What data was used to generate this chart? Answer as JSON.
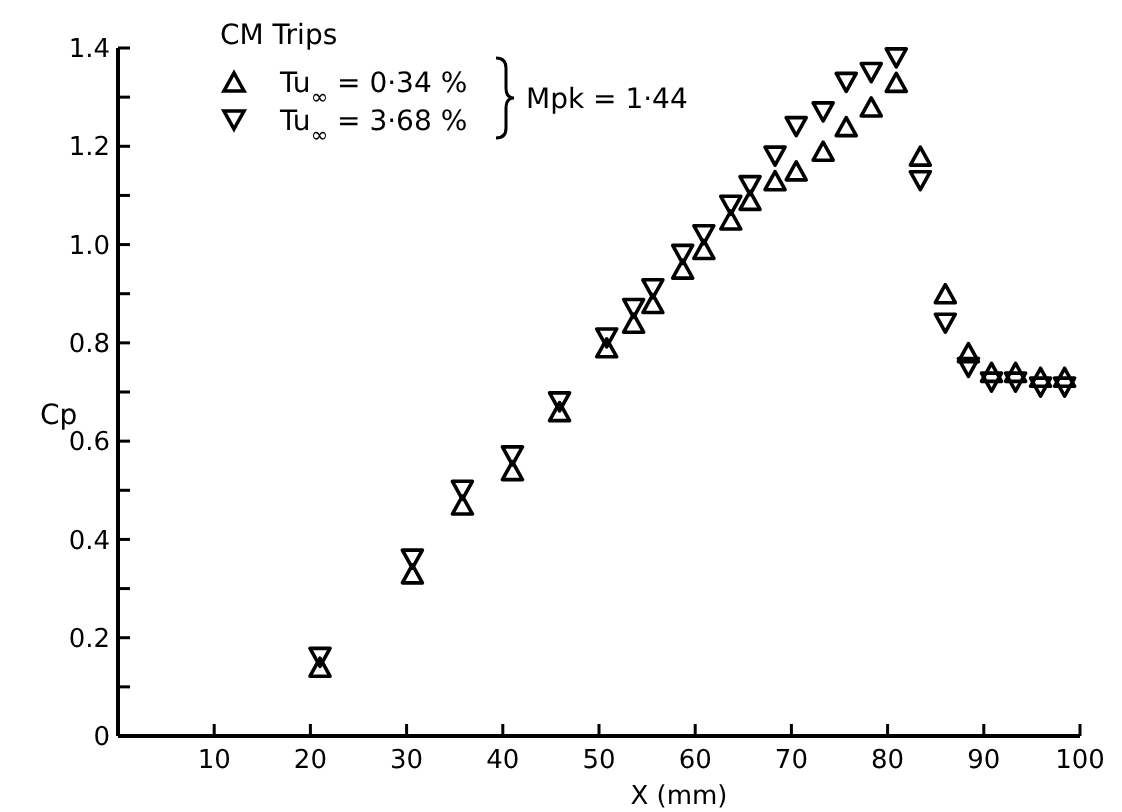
{
  "chart_data": {
    "type": "scatter",
    "xlabel": "X (mm)",
    "ylabel": "Cp",
    "legend_title": "CM Trips",
    "legend": "top left",
    "xlim": [
      0,
      100
    ],
    "ylim": [
      0,
      1.4
    ],
    "xticks": [
      10,
      20,
      30,
      40,
      50,
      60,
      70,
      80,
      90,
      100
    ],
    "yticks": [
      0,
      {
        "value": 0.1,
        "label": null
      },
      0.2,
      {
        "value": 0.3,
        "label": null
      },
      0.4,
      {
        "value": 0.5,
        "label": null
      },
      0.6,
      {
        "value": 0.7,
        "label": null
      },
      0.8,
      {
        "value": 0.9,
        "label": null
      },
      {
        "value": 1.0,
        "label": "1.0"
      },
      {
        "value": 1.1,
        "label": null
      },
      1.2,
      {
        "value": 1.3,
        "label": null
      },
      1.4
    ],
    "x": [
      21,
      30.6,
      35.8,
      41,
      45.9,
      50.8,
      53.6,
      55.6,
      58.7,
      60.9,
      63.7,
      65.7,
      68.3,
      70.5,
      73.3,
      75.7,
      78.3,
      80.9,
      83.4,
      86,
      88.4,
      90.8,
      93.3,
      95.9,
      98.4
    ],
    "annotations": [
      "Mpk = 1·44"
    ],
    "series": [
      {
        "name": "Tu$_{∞}$ = 0·34 %",
        "color": "#000000",
        "marker": "triangle",
        "values": [
          0.14,
          0.33,
          0.47,
          0.54,
          0.66,
          0.79,
          0.84,
          0.88,
          0.95,
          0.99,
          1.05,
          1.09,
          1.13,
          1.15,
          1.19,
          1.24,
          1.28,
          1.33,
          1.18,
          0.9,
          0.78,
          0.74,
          0.74,
          0.73,
          0.73
        ]
      },
      {
        "name": "Tu$_{∞}$ = 3·68 %",
        "color": "#000000",
        "marker": "triangle-down",
        "values": [
          0.16,
          0.36,
          0.5,
          0.57,
          0.68,
          0.81,
          0.87,
          0.91,
          0.98,
          1.02,
          1.08,
          1.12,
          1.18,
          1.24,
          1.27,
          1.33,
          1.35,
          1.38,
          1.13,
          0.84,
          0.75,
          0.72,
          0.72,
          0.71,
          0.71
        ]
      }
    ]
  }
}
